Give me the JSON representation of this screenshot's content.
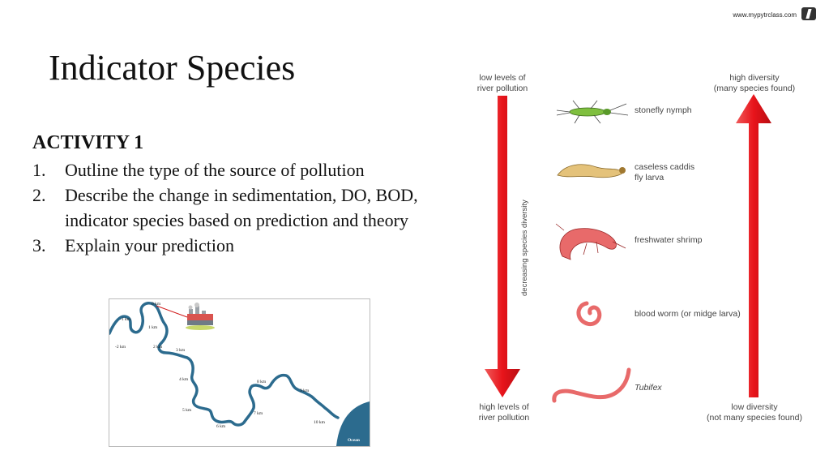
{
  "header": {
    "watermark": "www.mypytrclass.com"
  },
  "slide": {
    "title": "Indicator Species",
    "activity": "ACTIVITY 1",
    "tasks": [
      {
        "num": "1.",
        "text": "Outline the type of the source of pollution"
      },
      {
        "num": "2.",
        "text": "Describe the change in sedimentation, DO, BOD, indicator species based on prediction and theory"
      },
      {
        "num": "3.",
        "text": "Explain your prediction"
      }
    ]
  },
  "map": {
    "labels": [
      "0 km",
      "-1 km",
      "1 km",
      "-2 km",
      "2 km",
      "3 km",
      "4 km",
      "5 km",
      "6 km",
      "7 km",
      "8 km",
      "9 km",
      "10 km",
      "Ocean"
    ],
    "river_color": "#2c6b8e",
    "ocean_color": "#2c6b8e",
    "pointer_color": "#d01818"
  },
  "indicator": {
    "left_top_label": [
      "low levels of",
      "river pollution"
    ],
    "left_bottom_label": [
      "high levels of",
      "river pollution"
    ],
    "right_top_label": [
      "high diversity",
      "(many species found)"
    ],
    "right_bottom_label": [
      "low diversity",
      "(not many species found)"
    ],
    "axis_label": "decreasing species diversity",
    "species": [
      {
        "name": [
          "stonefly nymph"
        ],
        "italic": false,
        "icon": "stonefly-icon"
      },
      {
        "name": [
          "caseless caddis",
          "fly larva"
        ],
        "italic": false,
        "icon": "caddis-larva-icon"
      },
      {
        "name": [
          "freshwater shrimp"
        ],
        "italic": false,
        "icon": "shrimp-icon"
      },
      {
        "name": [
          "blood worm (or midge larva)"
        ],
        "italic": false,
        "icon": "blood-worm-icon"
      },
      {
        "name": [
          "Tubifex"
        ],
        "italic": true,
        "icon": "tubifex-icon"
      }
    ],
    "arrow_color": "#e8141b"
  }
}
